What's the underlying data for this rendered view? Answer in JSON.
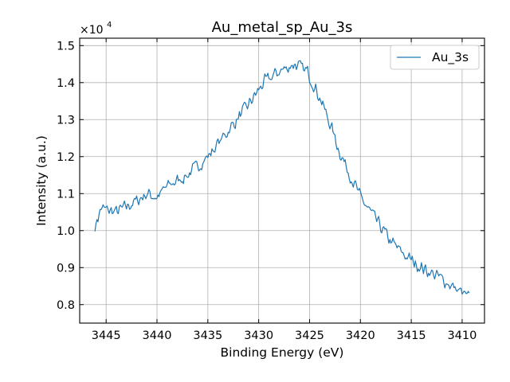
{
  "chart_data": {
    "type": "line",
    "title": "Au_metal_sp_Au_3s",
    "xlabel": "Binding Energy (eV)",
    "ylabel": "Intensity (a.u.)",
    "y_multiplier": "×10",
    "y_multiplier_exp": "4",
    "x_reversed": true,
    "xlim": [
      3447.6,
      3407.8
    ],
    "ylim": [
      0.75,
      1.52
    ],
    "x_ticks": [
      3445,
      3440,
      3435,
      3430,
      3425,
      3420,
      3415,
      3410
    ],
    "x_tick_labels": [
      "3445",
      "3440",
      "3435",
      "3430",
      "3425",
      "3420",
      "3415",
      "3410"
    ],
    "y_ticks": [
      0.8,
      0.9,
      1.0,
      1.1,
      1.2,
      1.3,
      1.4,
      1.5
    ],
    "y_tick_labels": [
      "0.8",
      "0.9",
      "1.0",
      "1.1",
      "1.2",
      "1.3",
      "1.4",
      "1.5"
    ],
    "grid": true,
    "legend_position": "top-right",
    "series": [
      {
        "name": "Au_3s",
        "color": "#1f77b4",
        "x_start": 3446.1,
        "x_step": -0.1,
        "noise": 0.022,
        "anchors": [
          [
            3446.1,
            1.01
          ],
          [
            3445.5,
            1.06
          ],
          [
            3444.0,
            1.05
          ],
          [
            3442.0,
            1.08
          ],
          [
            3441.0,
            1.1
          ],
          [
            3440.0,
            1.09
          ],
          [
            3439.0,
            1.12
          ],
          [
            3437.0,
            1.15
          ],
          [
            3435.0,
            1.2
          ],
          [
            3433.0,
            1.27
          ],
          [
            3431.0,
            1.34
          ],
          [
            3429.5,
            1.4
          ],
          [
            3428.0,
            1.43
          ],
          [
            3426.5,
            1.45
          ],
          [
            3425.2,
            1.43
          ],
          [
            3424.0,
            1.36
          ],
          [
            3423.0,
            1.29
          ],
          [
            3422.0,
            1.21
          ],
          [
            3421.0,
            1.15
          ],
          [
            3420.0,
            1.09
          ],
          [
            3419.0,
            1.05
          ],
          [
            3418.0,
            1.01
          ],
          [
            3417.0,
            0.97
          ],
          [
            3415.5,
            0.93
          ],
          [
            3414.0,
            0.9
          ],
          [
            3412.0,
            0.87
          ],
          [
            3410.5,
            0.84
          ],
          [
            3409.3,
            0.82
          ]
        ]
      }
    ]
  }
}
